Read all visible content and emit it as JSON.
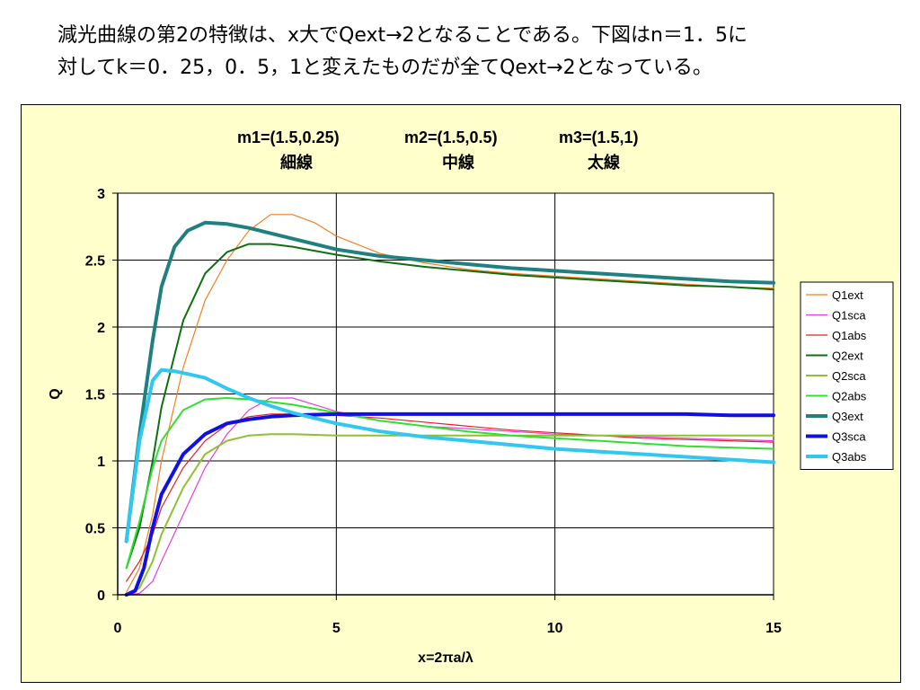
{
  "caption": {
    "line1": "減光曲線の第2の特徴は、x大でQext→2となることである。下図はn＝1．5に",
    "line2": "対してk＝0．25，0．5，1と変えたものだが全てQext→2となっている。"
  },
  "chart_data": {
    "type": "line",
    "title_lines": [
      [
        "m1=(1.5,0.25)",
        "m2=(1.5,0.5)",
        "m3=(1.5,1)"
      ],
      [
        "細線",
        "中線",
        "太線"
      ]
    ],
    "xlabel": "x=2πa/λ",
    "ylabel": "Q",
    "xlim": [
      0,
      15
    ],
    "ylim": [
      0,
      3
    ],
    "xticks": [
      0,
      5,
      10,
      15
    ],
    "yticks": [
      0,
      0.5,
      1,
      1.5,
      2,
      2.5,
      3
    ],
    "grid": "major",
    "legend_position": "right",
    "series": [
      {
        "name": "Q1ext",
        "color": "#f08020",
        "width": 1.2,
        "x": [
          0.2,
          0.5,
          0.8,
          1.0,
          1.5,
          2.0,
          2.5,
          3.0,
          3.5,
          4.0,
          4.5,
          5.0,
          6.0,
          7.0,
          8.0,
          9.0,
          10.0,
          11.0,
          12.0,
          13.0,
          14.0,
          15.0
        ],
        "y": [
          0.02,
          0.2,
          0.6,
          1.0,
          1.7,
          2.2,
          2.5,
          2.72,
          2.84,
          2.84,
          2.78,
          2.68,
          2.55,
          2.48,
          2.43,
          2.4,
          2.38,
          2.36,
          2.34,
          2.32,
          2.3,
          2.29
        ]
      },
      {
        "name": "Q1sca",
        "color": "#e040e0",
        "width": 1.2,
        "x": [
          0.2,
          0.5,
          0.8,
          1.0,
          1.5,
          2.0,
          2.5,
          3.0,
          3.5,
          4.0,
          4.5,
          5.0,
          6.0,
          7.0,
          8.0,
          9.0,
          10.0,
          11.0,
          12.0,
          13.0,
          14.0,
          15.0
        ],
        "y": [
          0.0,
          0.01,
          0.1,
          0.25,
          0.6,
          0.95,
          1.2,
          1.38,
          1.47,
          1.47,
          1.42,
          1.37,
          1.3,
          1.26,
          1.24,
          1.22,
          1.2,
          1.19,
          1.18,
          1.17,
          1.16,
          1.15
        ]
      },
      {
        "name": "Q1abs",
        "color": "#e02020",
        "width": 1.2,
        "x": [
          0.2,
          0.5,
          0.8,
          1.0,
          1.5,
          2.0,
          2.5,
          3.0,
          3.5,
          4.0,
          4.5,
          5.0,
          6.0,
          7.0,
          8.0,
          9.0,
          10.0,
          11.0,
          12.0,
          13.0,
          14.0,
          15.0
        ],
        "y": [
          0.1,
          0.25,
          0.45,
          0.65,
          0.95,
          1.15,
          1.27,
          1.33,
          1.35,
          1.35,
          1.35,
          1.34,
          1.32,
          1.29,
          1.26,
          1.23,
          1.21,
          1.19,
          1.17,
          1.16,
          1.15,
          1.14
        ]
      },
      {
        "name": "Q2ext",
        "color": "#107010",
        "width": 2,
        "x": [
          0.2,
          0.5,
          0.8,
          1.0,
          1.5,
          2.0,
          2.5,
          3.0,
          3.5,
          4.0,
          4.5,
          5.0,
          6.0,
          7.0,
          8.0,
          9.0,
          10.0,
          11.0,
          12.0,
          13.0,
          14.0,
          15.0
        ],
        "y": [
          0.2,
          0.5,
          1.0,
          1.4,
          2.05,
          2.4,
          2.56,
          2.62,
          2.62,
          2.6,
          2.57,
          2.54,
          2.49,
          2.45,
          2.42,
          2.39,
          2.37,
          2.35,
          2.33,
          2.31,
          2.3,
          2.28
        ]
      },
      {
        "name": "Q2sca",
        "color": "#90c030",
        "width": 2,
        "x": [
          0.2,
          0.5,
          0.8,
          1.0,
          1.5,
          2.0,
          2.5,
          3.0,
          3.5,
          4.0,
          5.0,
          6.0,
          7.0,
          8.0,
          9.0,
          10.0,
          11.0,
          12.0,
          13.0,
          14.0,
          15.0
        ],
        "y": [
          0.0,
          0.05,
          0.25,
          0.45,
          0.8,
          1.05,
          1.15,
          1.19,
          1.2,
          1.2,
          1.19,
          1.19,
          1.19,
          1.19,
          1.19,
          1.19,
          1.19,
          1.19,
          1.19,
          1.19,
          1.19
        ]
      },
      {
        "name": "Q2abs",
        "color": "#30e030",
        "width": 2,
        "x": [
          0.2,
          0.5,
          0.8,
          1.0,
          1.5,
          2.0,
          2.5,
          3.0,
          3.5,
          4.0,
          5.0,
          6.0,
          7.0,
          8.0,
          9.0,
          10.0,
          11.0,
          12.0,
          13.0,
          14.0,
          15.0
        ],
        "y": [
          0.2,
          0.55,
          0.95,
          1.15,
          1.38,
          1.46,
          1.47,
          1.46,
          1.44,
          1.42,
          1.36,
          1.3,
          1.26,
          1.22,
          1.19,
          1.17,
          1.15,
          1.13,
          1.11,
          1.1,
          1.09
        ]
      },
      {
        "name": "Q3ext",
        "color": "#208080",
        "width": 4,
        "x": [
          0.2,
          0.5,
          0.8,
          1.0,
          1.3,
          1.6,
          2.0,
          2.5,
          3.0,
          3.5,
          4.0,
          4.5,
          5.0,
          6.0,
          7.0,
          8.0,
          9.0,
          10.0,
          11.0,
          12.0,
          13.0,
          14.0,
          15.0
        ],
        "y": [
          0.4,
          1.2,
          1.9,
          2.3,
          2.6,
          2.72,
          2.78,
          2.77,
          2.74,
          2.7,
          2.66,
          2.62,
          2.58,
          2.53,
          2.5,
          2.47,
          2.44,
          2.42,
          2.4,
          2.38,
          2.36,
          2.34,
          2.33
        ]
      },
      {
        "name": "Q3sca",
        "color": "#1010e0",
        "width": 4,
        "x": [
          0.2,
          0.4,
          0.6,
          0.8,
          1.0,
          1.5,
          2.0,
          2.5,
          3.0,
          3.5,
          4.0,
          5.0,
          6.0,
          7.0,
          8.0,
          9.0,
          10.0,
          11.0,
          12.0,
          13.0,
          14.0,
          15.0
        ],
        "y": [
          0.0,
          0.03,
          0.2,
          0.5,
          0.75,
          1.05,
          1.2,
          1.28,
          1.31,
          1.33,
          1.34,
          1.35,
          1.35,
          1.35,
          1.35,
          1.35,
          1.35,
          1.35,
          1.35,
          1.35,
          1.34,
          1.34
        ]
      },
      {
        "name": "Q3abs",
        "color": "#30c8f0",
        "width": 4,
        "x": [
          0.2,
          0.5,
          0.8,
          1.0,
          1.3,
          1.6,
          2.0,
          2.5,
          3.0,
          3.5,
          4.0,
          5.0,
          6.0,
          7.0,
          8.0,
          9.0,
          10.0,
          11.0,
          12.0,
          13.0,
          14.0,
          15.0
        ],
        "y": [
          0.4,
          1.15,
          1.6,
          1.68,
          1.67,
          1.65,
          1.62,
          1.54,
          1.47,
          1.41,
          1.36,
          1.28,
          1.22,
          1.18,
          1.15,
          1.12,
          1.09,
          1.07,
          1.05,
          1.03,
          1.01,
          0.99
        ]
      }
    ]
  }
}
